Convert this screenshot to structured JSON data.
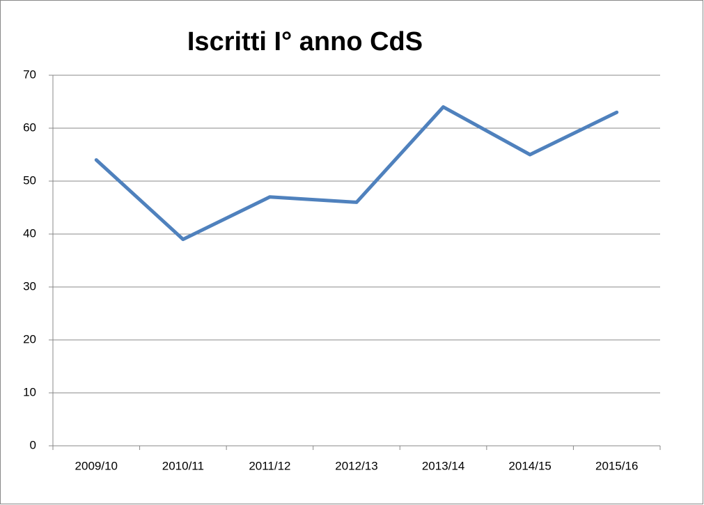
{
  "chart_data": {
    "type": "line",
    "title": "Iscritti I° anno CdS",
    "categories": [
      "2009/10",
      "2010/11",
      "2011/12",
      "2012/13",
      "2013/14",
      "2014/15",
      "2015/16"
    ],
    "series": [
      {
        "name": "Iscritti I° anno CdS",
        "color": "#4f81bd",
        "values": [
          54,
          39,
          47,
          46,
          64,
          55,
          63
        ]
      }
    ],
    "ylim": [
      0,
      70
    ],
    "yticks": [
      0,
      10,
      20,
      30,
      40,
      50,
      60,
      70
    ],
    "grid": true
  }
}
